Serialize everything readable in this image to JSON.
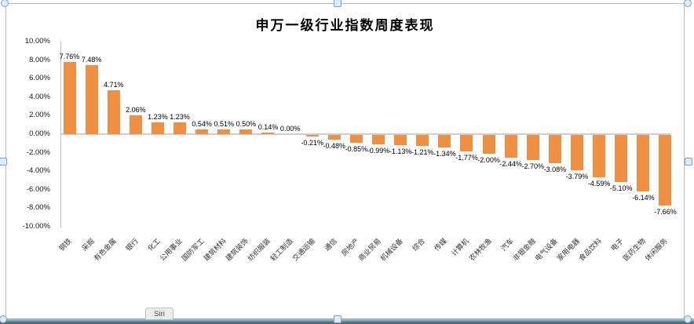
{
  "chrome": {
    "sheet_tab_label": "Siri"
  },
  "chart_data": {
    "type": "bar",
    "title": "申万一级行业指数周度表现",
    "categories": [
      "钢铁",
      "采掘",
      "有色金属",
      "银行",
      "化工",
      "公用事业",
      "国防军工",
      "建筑材料",
      "建筑装饰",
      "纺织服装",
      "轻工制造",
      "交通运输",
      "通信",
      "房地产",
      "商业贸易",
      "机械设备",
      "综合",
      "传媒",
      "计算机",
      "农林牧渔",
      "汽车",
      "非银金融",
      "电气设备",
      "家用电器",
      "食品饮料",
      "电子",
      "医药生物",
      "休闲服务"
    ],
    "values": [
      7.76,
      7.48,
      4.71,
      2.06,
      1.23,
      1.23,
      0.54,
      0.51,
      0.5,
      0.14,
      0.0,
      -0.21,
      -0.48,
      -0.85,
      -0.99,
      -1.13,
      -1.21,
      -1.34,
      -1.77,
      -2.0,
      -2.44,
      -2.7,
      -3.08,
      -3.79,
      -4.59,
      -5.1,
      -6.14,
      -7.66
    ],
    "value_labels": [
      "7.76%",
      "7.48%",
      "4.71%",
      "2.06%",
      "1.23%",
      "1.23%",
      "0.54%",
      "0.51%",
      "0.50%",
      "0.14%",
      "0.00%",
      "-0.21%",
      "-0.48%",
      "-0.85%",
      "-0.99%",
      "-1.13%",
      "-1.21%",
      "-1.34%",
      "-1.77%",
      "-2.00%",
      "-2.44%",
      "-2.70%",
      "-3.08%",
      "-3.79%",
      "-4.59%",
      "-5.10%",
      "-6.14%",
      "-7.66%"
    ],
    "y_ticks": [
      "10.00%",
      "8.00%",
      "6.00%",
      "4.00%",
      "2.00%",
      "0.00%",
      "-2.00%",
      "-4.00%",
      "-6.00%",
      "-8.00%",
      "-10.00%"
    ],
    "ylim": [
      -10,
      10
    ],
    "xlabel": "",
    "ylabel": "",
    "grid": false,
    "legend_position": "none",
    "bar_color": "#EE8F42",
    "axis_color": "#BFBFBF"
  }
}
